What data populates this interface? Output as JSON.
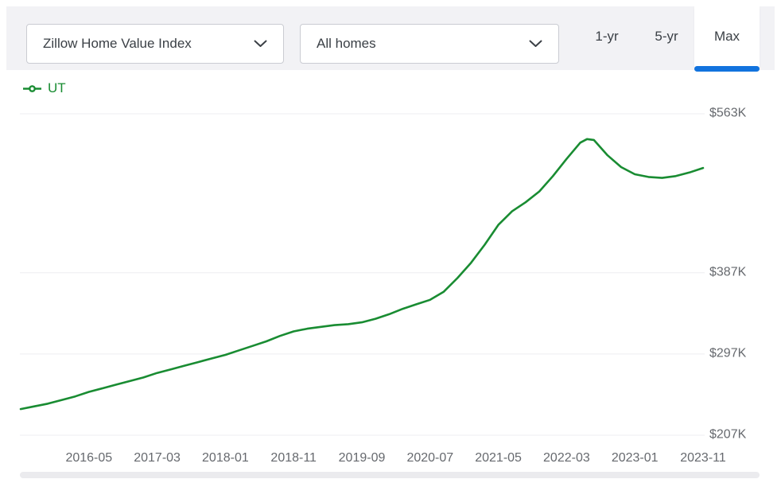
{
  "toolbar": {
    "metric_dropdown": {
      "value": "Zillow Home Value Index"
    },
    "home_type_dropdown": {
      "value": "All homes"
    },
    "range_tabs": [
      {
        "label": "1-yr",
        "selected": false
      },
      {
        "label": "5-yr",
        "selected": false
      },
      {
        "label": "Max",
        "selected": true
      }
    ]
  },
  "legend": {
    "series_label": "UT"
  },
  "colors": {
    "accent_blue": "#1273de",
    "series_green": "#198C32",
    "toolbar_bg": "#f2f2f5",
    "control_border": "#caccd2",
    "control_text": "#3b4046",
    "axis_text": "#66696e",
    "gridline": "#ededf0",
    "scrollbar_track": "#ebebee"
  },
  "chart_data": {
    "type": "line",
    "grid": true,
    "legend_position": "top-left",
    "ylim": [
      207,
      563
    ],
    "y_axis": {
      "side": "right",
      "unit": "USD thousands",
      "ticks": [
        {
          "label": "$563K",
          "value": 563
        },
        {
          "label": "$387K",
          "value": 387
        },
        {
          "label": "$297K",
          "value": 297
        },
        {
          "label": "$207K",
          "value": 207
        }
      ]
    },
    "x_ticks": [
      "2016-05",
      "2017-03",
      "2018-01",
      "2018-11",
      "2019-09",
      "2020-07",
      "2021-05",
      "2022-03",
      "2023-01",
      "2023-11"
    ],
    "series": [
      {
        "name": "UT",
        "color": "#198C32",
        "points": [
          [
            "2015-07",
            236
          ],
          [
            "2015-09",
            239
          ],
          [
            "2015-11",
            242
          ],
          [
            "2016-01",
            246
          ],
          [
            "2016-03",
            250
          ],
          [
            "2016-05",
            255
          ],
          [
            "2016-07",
            259
          ],
          [
            "2016-09",
            263
          ],
          [
            "2016-11",
            267
          ],
          [
            "2017-01",
            271
          ],
          [
            "2017-03",
            276
          ],
          [
            "2017-05",
            280
          ],
          [
            "2017-07",
            284
          ],
          [
            "2017-09",
            288
          ],
          [
            "2017-11",
            292
          ],
          [
            "2018-01",
            296
          ],
          [
            "2018-03",
            301
          ],
          [
            "2018-05",
            306
          ],
          [
            "2018-07",
            311
          ],
          [
            "2018-09",
            317
          ],
          [
            "2018-11",
            322
          ],
          [
            "2019-01",
            325
          ],
          [
            "2019-03",
            327
          ],
          [
            "2019-05",
            329
          ],
          [
            "2019-07",
            330
          ],
          [
            "2019-09",
            332
          ],
          [
            "2019-11",
            336
          ],
          [
            "2020-01",
            341
          ],
          [
            "2020-03",
            347
          ],
          [
            "2020-05",
            352
          ],
          [
            "2020-07",
            357
          ],
          [
            "2020-09",
            366
          ],
          [
            "2020-11",
            381
          ],
          [
            "2021-01",
            398
          ],
          [
            "2021-03",
            418
          ],
          [
            "2021-05",
            440
          ],
          [
            "2021-07",
            455
          ],
          [
            "2021-09",
            465
          ],
          [
            "2021-11",
            477
          ],
          [
            "2022-01",
            494
          ],
          [
            "2022-03",
            513
          ],
          [
            "2022-05",
            531
          ],
          [
            "2022-06",
            535
          ],
          [
            "2022-07",
            534
          ],
          [
            "2022-09",
            517
          ],
          [
            "2022-11",
            504
          ],
          [
            "2023-01",
            496
          ],
          [
            "2023-03",
            493
          ],
          [
            "2023-05",
            492
          ],
          [
            "2023-07",
            494
          ],
          [
            "2023-09",
            498
          ],
          [
            "2023-11",
            503
          ]
        ]
      }
    ]
  }
}
